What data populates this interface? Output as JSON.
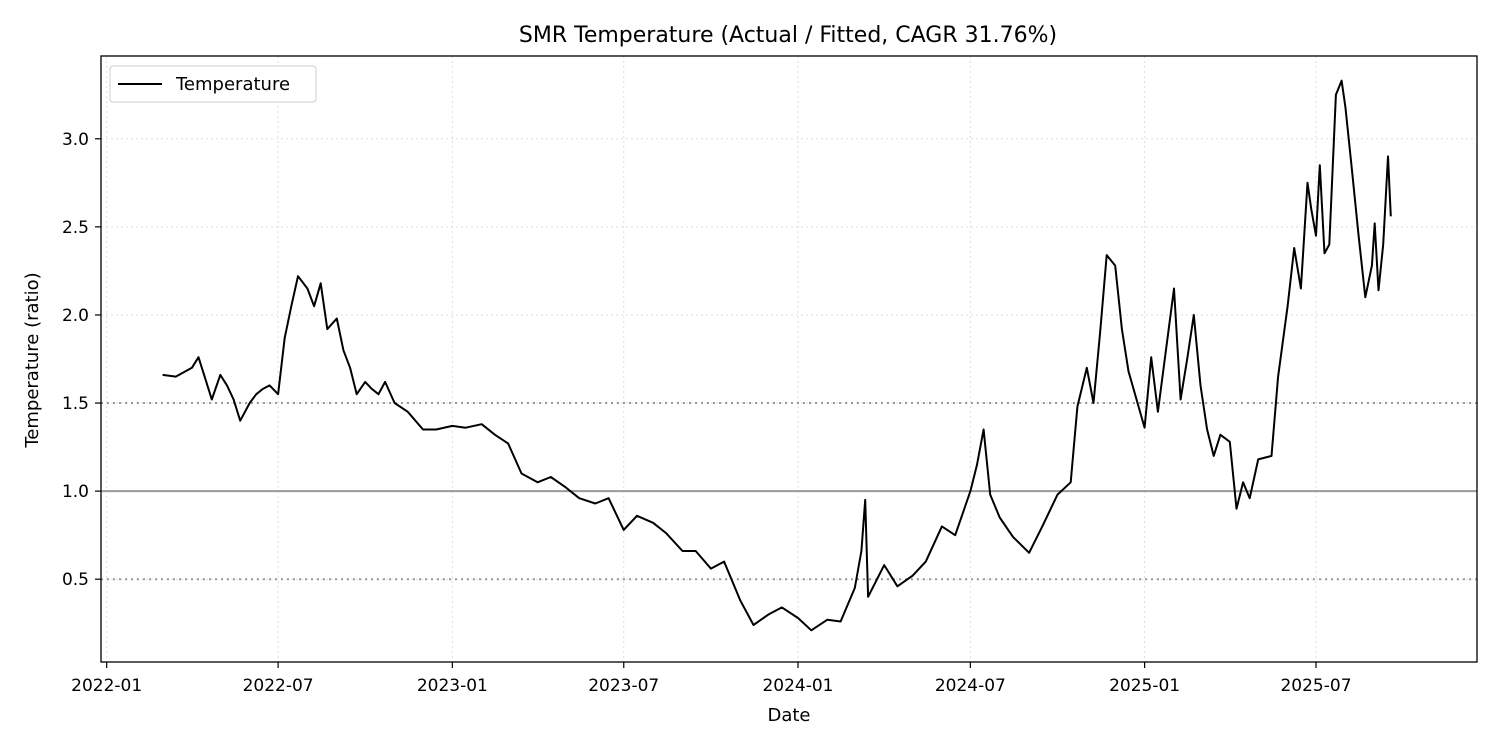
{
  "chart_data": {
    "type": "line",
    "title": "SMR Temperature (Actual / Fitted, CAGR 31.76%)",
    "xlabel": "Date",
    "ylabel": "Temperature (ratio)",
    "xlim": [
      "2021-12-26",
      "2025-12-18"
    ],
    "ylim": [
      0.03,
      3.47
    ],
    "x_ticks": [
      "2022-01",
      "2022-07",
      "2023-01",
      "2023-07",
      "2024-01",
      "2024-07",
      "2025-01",
      "2025-07"
    ],
    "y_ticks": [
      0.5,
      1.0,
      1.5,
      2.0,
      2.5,
      3.0
    ],
    "y_tick_labels": [
      "0.5",
      "1.0",
      "1.5",
      "2.0",
      "2.5",
      "3.0"
    ],
    "grid": true,
    "legend": {
      "placement": "top-left",
      "entries": [
        "Temperature"
      ]
    },
    "reference_lines": [
      {
        "y": 1.0,
        "style": "solid",
        "color": "#999999"
      },
      {
        "y": 0.5,
        "style": "dotted",
        "color": "#999999"
      },
      {
        "y": 1.5,
        "style": "dotted",
        "color": "#999999"
      }
    ],
    "series": [
      {
        "name": "Temperature",
        "color": "#000000",
        "points": [
          [
            "2022-03-01",
            1.66
          ],
          [
            "2022-03-15",
            1.65
          ],
          [
            "2022-04-01",
            1.7
          ],
          [
            "2022-04-08",
            1.76
          ],
          [
            "2022-04-15",
            1.64
          ],
          [
            "2022-04-22",
            1.52
          ],
          [
            "2022-05-01",
            1.66
          ],
          [
            "2022-05-08",
            1.6
          ],
          [
            "2022-05-15",
            1.52
          ],
          [
            "2022-05-22",
            1.4
          ],
          [
            "2022-06-01",
            1.5
          ],
          [
            "2022-06-08",
            1.55
          ],
          [
            "2022-06-15",
            1.58
          ],
          [
            "2022-06-22",
            1.6
          ],
          [
            "2022-07-01",
            1.55
          ],
          [
            "2022-07-08",
            1.87
          ],
          [
            "2022-07-15",
            2.05
          ],
          [
            "2022-07-22",
            2.22
          ],
          [
            "2022-08-01",
            2.15
          ],
          [
            "2022-08-08",
            2.05
          ],
          [
            "2022-08-15",
            2.18
          ],
          [
            "2022-08-22",
            1.92
          ],
          [
            "2022-09-01",
            1.98
          ],
          [
            "2022-09-08",
            1.8
          ],
          [
            "2022-09-15",
            1.7
          ],
          [
            "2022-09-22",
            1.55
          ],
          [
            "2022-10-01",
            1.62
          ],
          [
            "2022-10-08",
            1.58
          ],
          [
            "2022-10-15",
            1.55
          ],
          [
            "2022-10-22",
            1.62
          ],
          [
            "2022-11-01",
            1.5
          ],
          [
            "2022-11-15",
            1.45
          ],
          [
            "2022-12-01",
            1.35
          ],
          [
            "2022-12-15",
            1.35
          ],
          [
            "2023-01-01",
            1.37
          ],
          [
            "2023-01-15",
            1.36
          ],
          [
            "2023-02-01",
            1.38
          ],
          [
            "2023-02-15",
            1.32
          ],
          [
            "2023-03-01",
            1.27
          ],
          [
            "2023-03-15",
            1.1
          ],
          [
            "2023-04-01",
            1.05
          ],
          [
            "2023-04-15",
            1.08
          ],
          [
            "2023-05-01",
            1.02
          ],
          [
            "2023-05-15",
            0.96
          ],
          [
            "2023-06-01",
            0.93
          ],
          [
            "2023-06-15",
            0.96
          ],
          [
            "2023-07-01",
            0.78
          ],
          [
            "2023-07-15",
            0.86
          ],
          [
            "2023-08-01",
            0.82
          ],
          [
            "2023-08-15",
            0.76
          ],
          [
            "2023-09-01",
            0.66
          ],
          [
            "2023-09-15",
            0.66
          ],
          [
            "2023-10-01",
            0.56
          ],
          [
            "2023-10-15",
            0.6
          ],
          [
            "2023-11-01",
            0.38
          ],
          [
            "2023-11-15",
            0.24
          ],
          [
            "2023-12-01",
            0.3
          ],
          [
            "2023-12-15",
            0.34
          ],
          [
            "2024-01-01",
            0.28
          ],
          [
            "2024-01-15",
            0.21
          ],
          [
            "2024-02-01",
            0.27
          ],
          [
            "2024-02-15",
            0.26
          ],
          [
            "2024-03-01",
            0.45
          ],
          [
            "2024-03-08",
            0.66
          ],
          [
            "2024-03-12",
            0.95
          ],
          [
            "2024-03-15",
            0.4
          ],
          [
            "2024-04-01",
            0.58
          ],
          [
            "2024-04-15",
            0.46
          ],
          [
            "2024-05-01",
            0.52
          ],
          [
            "2024-05-15",
            0.6
          ],
          [
            "2024-06-01",
            0.8
          ],
          [
            "2024-06-15",
            0.75
          ],
          [
            "2024-07-01",
            1.0
          ],
          [
            "2024-07-08",
            1.15
          ],
          [
            "2024-07-15",
            1.35
          ],
          [
            "2024-07-22",
            0.98
          ],
          [
            "2024-08-01",
            0.85
          ],
          [
            "2024-08-15",
            0.74
          ],
          [
            "2024-09-01",
            0.65
          ],
          [
            "2024-09-15",
            0.8
          ],
          [
            "2024-10-01",
            0.98
          ],
          [
            "2024-10-15",
            1.05
          ],
          [
            "2024-10-22",
            1.48
          ],
          [
            "2024-11-01",
            1.7
          ],
          [
            "2024-11-08",
            1.5
          ],
          [
            "2024-11-15",
            1.9
          ],
          [
            "2024-11-22",
            2.34
          ],
          [
            "2024-12-01",
            2.28
          ],
          [
            "2024-12-08",
            1.92
          ],
          [
            "2024-12-15",
            1.68
          ],
          [
            "2025-01-01",
            1.36
          ],
          [
            "2025-01-08",
            1.76
          ],
          [
            "2025-01-15",
            1.45
          ],
          [
            "2025-02-01",
            2.15
          ],
          [
            "2025-02-08",
            1.52
          ],
          [
            "2025-02-15",
            1.75
          ],
          [
            "2025-02-22",
            2.0
          ],
          [
            "2025-03-01",
            1.6
          ],
          [
            "2025-03-08",
            1.35
          ],
          [
            "2025-03-15",
            1.2
          ],
          [
            "2025-03-22",
            1.32
          ],
          [
            "2025-04-01",
            1.28
          ],
          [
            "2025-04-08",
            0.9
          ],
          [
            "2025-04-15",
            1.05
          ],
          [
            "2025-04-22",
            0.96
          ],
          [
            "2025-05-01",
            1.18
          ],
          [
            "2025-05-15",
            1.2
          ],
          [
            "2025-05-22",
            1.65
          ],
          [
            "2025-06-01",
            2.05
          ],
          [
            "2025-06-08",
            2.38
          ],
          [
            "2025-06-15",
            2.15
          ],
          [
            "2025-06-22",
            2.75
          ],
          [
            "2025-06-26",
            2.6
          ],
          [
            "2025-07-01",
            2.45
          ],
          [
            "2025-07-05",
            2.85
          ],
          [
            "2025-07-10",
            2.35
          ],
          [
            "2025-07-15",
            2.4
          ],
          [
            "2025-07-22",
            3.25
          ],
          [
            "2025-07-28",
            3.33
          ],
          [
            "2025-08-01",
            3.18
          ],
          [
            "2025-08-08",
            2.82
          ],
          [
            "2025-08-15",
            2.45
          ],
          [
            "2025-08-22",
            2.1
          ],
          [
            "2025-08-29",
            2.28
          ],
          [
            "2025-09-01",
            2.52
          ],
          [
            "2025-09-05",
            2.14
          ],
          [
            "2025-09-10",
            2.4
          ],
          [
            "2025-09-15",
            2.9
          ],
          [
            "2025-09-18",
            2.56
          ]
        ]
      }
    ]
  }
}
